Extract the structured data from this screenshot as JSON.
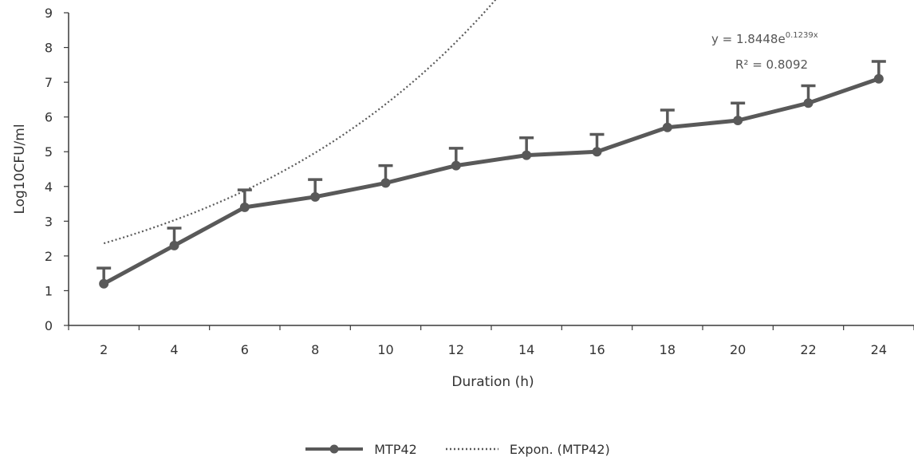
{
  "chart_data": {
    "type": "line",
    "x": [
      2,
      4,
      6,
      8,
      10,
      12,
      14,
      16,
      18,
      20,
      22,
      24
    ],
    "series": [
      {
        "name": "MTP42",
        "values": [
          1.2,
          2.3,
          3.4,
          3.7,
          4.1,
          4.6,
          4.9,
          5.0,
          5.7,
          5.9,
          6.4,
          7.1
        ],
        "error_upper": [
          0.45,
          0.5,
          0.5,
          0.5,
          0.5,
          0.5,
          0.5,
          0.5,
          0.5,
          0.5,
          0.5,
          0.5
        ],
        "color": "#595959"
      },
      {
        "name": "Expon. (MTP42)",
        "trendline": "exponential",
        "a": 1.8448,
        "b": 0.1239,
        "color": "#595959"
      }
    ],
    "xlabel": "Duration (h)",
    "ylabel": "Log10CFU/ml",
    "xticks": [
      "2",
      "4",
      "6",
      "8",
      "10",
      "12",
      "14",
      "16",
      "18",
      "20",
      "22",
      "24"
    ],
    "yticks": [
      "0",
      "1",
      "2",
      "3",
      "4",
      "5",
      "6",
      "7",
      "8",
      "9"
    ],
    "ylim": [
      0,
      9
    ],
    "grid": false,
    "legend_position": "bottom",
    "annotations": {
      "equation": "y = 1.8448e",
      "exponent": "0.1239x",
      "r_squared": "R² = 0.8092"
    }
  }
}
